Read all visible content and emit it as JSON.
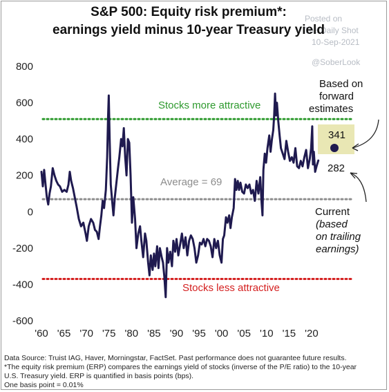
{
  "chart_data": {
    "type": "line",
    "title": "S&P 500: Equity risk premium*:",
    "subtitle": "earnings yield minus 10-year Treasury yield",
    "watermark": [
      "Posted on",
      "The Daily Shot",
      "10-Sep-2021",
      "@SoberLook"
    ],
    "xlabel": "",
    "ylabel": "",
    "xlim": [
      1960,
      2021.7
    ],
    "ylim": [
      -600,
      800
    ],
    "x_tick_labels": [
      "'60",
      "'65",
      "'70",
      "'75",
      "'80",
      "'85",
      "'90",
      "'95",
      "'00",
      "'05",
      "'10",
      "'15",
      "'20"
    ],
    "x_tick_values": [
      1960,
      1965,
      1970,
      1975,
      1980,
      1985,
      1990,
      1995,
      2000,
      2005,
      2010,
      2015,
      2020
    ],
    "y_ticks": [
      800,
      600,
      400,
      200,
      0,
      -200,
      -400,
      -600
    ],
    "grid": false,
    "line_color": "#1f1a4f",
    "series": [
      {
        "values": [
          [
            1960.0,
            220
          ],
          [
            1960.3,
            140
          ],
          [
            1960.6,
            230
          ],
          [
            1960.9,
            150
          ],
          [
            1961.2,
            80
          ],
          [
            1961.5,
            40
          ],
          [
            1961.8,
            100
          ],
          [
            1962.1,
            140
          ],
          [
            1962.5,
            240
          ],
          [
            1962.9,
            200
          ],
          [
            1963.3,
            170
          ],
          [
            1963.7,
            150
          ],
          [
            1964.1,
            140
          ],
          [
            1964.6,
            110
          ],
          [
            1965.1,
            120
          ],
          [
            1965.6,
            110
          ],
          [
            1966.0,
            150
          ],
          [
            1966.3,
            220
          ],
          [
            1966.6,
            170
          ],
          [
            1967.0,
            130
          ],
          [
            1967.4,
            80
          ],
          [
            1967.8,
            30
          ],
          [
            1968.3,
            -40
          ],
          [
            1968.8,
            -80
          ],
          [
            1969.3,
            -60
          ],
          [
            1969.8,
            -120
          ],
          [
            1970.1,
            -160
          ],
          [
            1970.5,
            -80
          ],
          [
            1971.0,
            -40
          ],
          [
            1971.5,
            -60
          ],
          [
            1971.9,
            -100
          ],
          [
            1972.3,
            -110
          ],
          [
            1972.7,
            -150
          ],
          [
            1973.0,
            -80
          ],
          [
            1973.3,
            -20
          ],
          [
            1973.6,
            60
          ],
          [
            1973.9,
            20
          ],
          [
            1974.3,
            120
          ],
          [
            1974.6,
            300
          ],
          [
            1974.8,
            520
          ],
          [
            1974.95,
            640
          ],
          [
            1975.15,
            400
          ],
          [
            1975.4,
            150
          ],
          [
            1975.7,
            60
          ],
          [
            1976.0,
            -20
          ],
          [
            1976.3,
            80
          ],
          [
            1976.6,
            150
          ],
          [
            1977.0,
            240
          ],
          [
            1977.3,
            300
          ],
          [
            1977.7,
            400
          ],
          [
            1978.0,
            360
          ],
          [
            1978.3,
            460
          ],
          [
            1978.6,
            300
          ],
          [
            1978.9,
            200
          ],
          [
            1979.2,
            400
          ],
          [
            1979.5,
            380
          ],
          [
            1979.8,
            200
          ],
          [
            1980.1,
            -60
          ],
          [
            1980.4,
            80
          ],
          [
            1980.8,
            -40
          ],
          [
            1981.1,
            -200
          ],
          [
            1981.5,
            -120
          ],
          [
            1981.9,
            -80
          ],
          [
            1982.2,
            -160
          ],
          [
            1982.6,
            -250
          ],
          [
            1983.0,
            -120
          ],
          [
            1983.3,
            -160
          ],
          [
            1983.7,
            -280
          ],
          [
            1984.0,
            -350
          ],
          [
            1984.3,
            -240
          ],
          [
            1984.7,
            -320
          ],
          [
            1985.0,
            -230
          ],
          [
            1985.3,
            -300
          ],
          [
            1985.7,
            -190
          ],
          [
            1986.0,
            -310
          ],
          [
            1986.3,
            -200
          ],
          [
            1986.7,
            -250
          ],
          [
            1987.0,
            -280
          ],
          [
            1987.3,
            -360
          ],
          [
            1987.6,
            -470
          ],
          [
            1987.9,
            -200
          ],
          [
            1988.2,
            -280
          ],
          [
            1988.6,
            -220
          ],
          [
            1989.0,
            -300
          ],
          [
            1989.3,
            -160
          ],
          [
            1989.7,
            -220
          ],
          [
            1990.0,
            -150
          ],
          [
            1990.4,
            -240
          ],
          [
            1990.8,
            -180
          ],
          [
            1991.2,
            -120
          ],
          [
            1991.6,
            -200
          ],
          [
            1992.0,
            -140
          ],
          [
            1992.4,
            -240
          ],
          [
            1992.8,
            -160
          ],
          [
            1993.2,
            -130
          ],
          [
            1993.6,
            -150
          ],
          [
            1994.0,
            -200
          ],
          [
            1994.4,
            -280
          ],
          [
            1994.8,
            -240
          ],
          [
            1995.2,
            -170
          ],
          [
            1995.6,
            -180
          ],
          [
            1996.0,
            -150
          ],
          [
            1996.4,
            -190
          ],
          [
            1996.8,
            -150
          ],
          [
            1997.2,
            -160
          ],
          [
            1997.6,
            -190
          ],
          [
            1998.0,
            -250
          ],
          [
            1998.4,
            -150
          ],
          [
            1998.8,
            -200
          ],
          [
            1999.2,
            -160
          ],
          [
            1999.6,
            -240
          ],
          [
            2000.0,
            -280
          ],
          [
            2000.3,
            -150
          ],
          [
            2000.6,
            -130
          ],
          [
            2001.0,
            -30
          ],
          [
            2001.3,
            -60
          ],
          [
            2001.7,
            -20
          ],
          [
            2002.0,
            -90
          ],
          [
            2002.3,
            -30
          ],
          [
            2002.7,
            20
          ],
          [
            2003.0,
            180
          ],
          [
            2003.3,
            120
          ],
          [
            2003.6,
            170
          ],
          [
            2003.9,
            120
          ],
          [
            2004.2,
            160
          ],
          [
            2004.6,
            110
          ],
          [
            2005.0,
            100
          ],
          [
            2005.4,
            150
          ],
          [
            2005.8,
            130
          ],
          [
            2006.2,
            150
          ],
          [
            2006.6,
            100
          ],
          [
            2007.0,
            120
          ],
          [
            2007.4,
            60
          ],
          [
            2007.8,
            170
          ],
          [
            2008.2,
            100
          ],
          [
            2008.6,
            190
          ],
          [
            2008.9,
            50
          ],
          [
            2009.1,
            -20
          ],
          [
            2009.3,
            230
          ],
          [
            2009.6,
            320
          ],
          [
            2009.9,
            270
          ],
          [
            2010.2,
            350
          ],
          [
            2010.6,
            420
          ],
          [
            2010.9,
            330
          ],
          [
            2011.2,
            400
          ],
          [
            2011.5,
            450
          ],
          [
            2011.7,
            530
          ],
          [
            2011.9,
            650
          ],
          [
            2012.1,
            530
          ],
          [
            2012.3,
            600
          ],
          [
            2012.6,
            500
          ],
          [
            2012.9,
            420
          ],
          [
            2013.2,
            350
          ],
          [
            2013.6,
            320
          ],
          [
            2014.0,
            290
          ],
          [
            2014.4,
            390
          ],
          [
            2014.8,
            330
          ],
          [
            2015.2,
            280
          ],
          [
            2015.6,
            300
          ],
          [
            2016.0,
            270
          ],
          [
            2016.4,
            350
          ],
          [
            2016.8,
            250
          ],
          [
            2017.2,
            240
          ],
          [
            2017.6,
            280
          ],
          [
            2018.0,
            250
          ],
          [
            2018.4,
            300
          ],
          [
            2018.8,
            340
          ],
          [
            2019.2,
            240
          ],
          [
            2019.6,
            290
          ],
          [
            2019.9,
            350
          ],
          [
            2020.15,
            470
          ],
          [
            2020.3,
            260
          ],
          [
            2020.5,
            330
          ],
          [
            2020.8,
            220
          ],
          [
            2021.1,
            250
          ],
          [
            2021.5,
            282
          ]
        ]
      }
    ],
    "reference_lines": [
      {
        "label": "Stocks more attractive",
        "value": 510,
        "color": "#2e9a2e"
      },
      {
        "label": "Average = 69",
        "value": 69,
        "color": "#8c8c8c"
      },
      {
        "label": "Stocks less attractive",
        "value": -370,
        "color": "#d42020"
      }
    ],
    "forward_point": {
      "x": 2021.5,
      "y": 341,
      "label": "341"
    },
    "current_label": "282",
    "forward_note": [
      "Based on",
      "forward",
      "estimates"
    ],
    "current_note": [
      "Current",
      "(based",
      "on trailing",
      "earnings)"
    ],
    "highlight_color": "#e9e7b4",
    "footnotes": [
      "Data Source: Truist IAG, Haver, Morningstar, FactSet. Past performance does not guarantee future results.",
      "*The equity risk premium (ERP) compares the earnings yield of stocks (inverse of the P/E ratio) to the 10-year",
      "U.S. Treasury yield. ERP is quantified in basis points (bps).",
      "One basis point = 0.01%"
    ]
  }
}
